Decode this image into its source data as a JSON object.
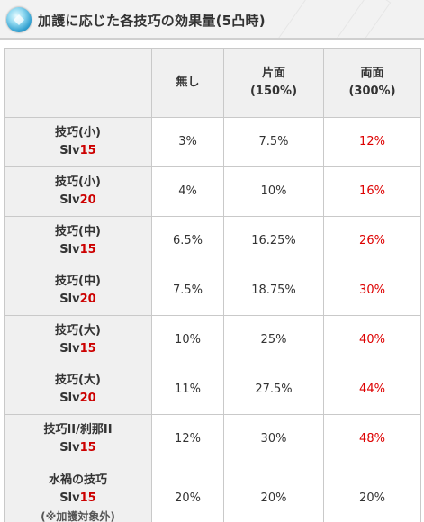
{
  "header": {
    "title": "加護に応じた各技巧の効果量(5凸時)",
    "icon": "water-gem-icon"
  },
  "table": {
    "columns": [
      {
        "line1": "",
        "line2": ""
      },
      {
        "line1": "無し",
        "line2": ""
      },
      {
        "line1": "片面",
        "line2": "(150%)"
      },
      {
        "line1": "両面",
        "line2": "(300%)"
      }
    ],
    "rows": [
      {
        "name": "技巧(小)",
        "slv_prefix": "Slv",
        "slv_num": "15",
        "note": "",
        "none": "3%",
        "single": "7.5%",
        "double": "12%"
      },
      {
        "name": "技巧(小)",
        "slv_prefix": "Slv",
        "slv_num": "20",
        "note": "",
        "none": "4%",
        "single": "10%",
        "double": "16%"
      },
      {
        "name": "技巧(中)",
        "slv_prefix": "Slv",
        "slv_num": "15",
        "note": "",
        "none": "6.5%",
        "single": "16.25%",
        "double": "26%"
      },
      {
        "name": "技巧(中)",
        "slv_prefix": "Slv",
        "slv_num": "20",
        "note": "",
        "none": "7.5%",
        "single": "18.75%",
        "double": "30%"
      },
      {
        "name": "技巧(大)",
        "slv_prefix": "Slv",
        "slv_num": "15",
        "note": "",
        "none": "10%",
        "single": "25%",
        "double": "40%"
      },
      {
        "name": "技巧(大)",
        "slv_prefix": "Slv",
        "slv_num": "20",
        "note": "",
        "none": "11%",
        "single": "27.5%",
        "double": "44%"
      },
      {
        "name": "技巧II/刹那II",
        "slv_prefix": "Slv",
        "slv_num": "15",
        "note": "",
        "none": "12%",
        "single": "30%",
        "double": "48%"
      },
      {
        "name": "水禍の技巧",
        "slv_prefix": "Slv",
        "slv_num": "15",
        "note": "(※加護対象外)",
        "none": "20%",
        "single": "20%",
        "double": "20%"
      }
    ]
  },
  "colors": {
    "highlight_red": "#dd0000",
    "slv_red": "#cc0000",
    "header_gray": "#f0f0f0"
  }
}
